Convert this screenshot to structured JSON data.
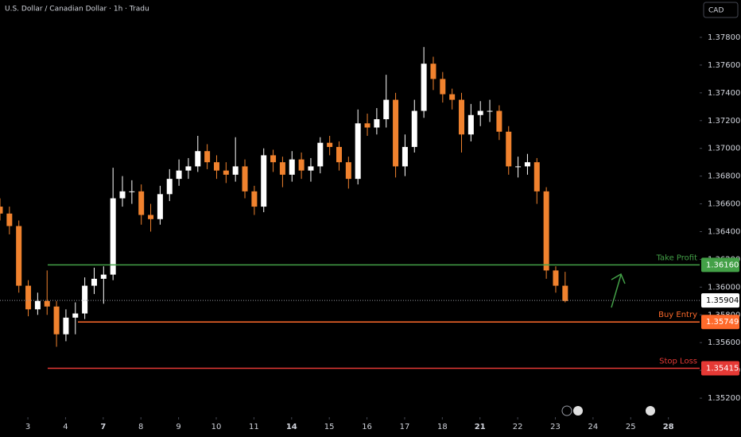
{
  "chart_data": {
    "type": "candlestick",
    "title": "U.S. Dollar / Canadian Dollar · 1h · Tradu",
    "currency": "CAD",
    "x": [
      -0.74,
      -0.49,
      -0.24,
      0.01,
      0.26,
      0.51,
      0.76,
      1.01,
      1.26,
      1.51,
      1.76,
      2.01,
      2.26,
      2.51,
      2.76,
      3.01,
      3.26,
      3.51,
      3.76,
      4.01,
      4.26,
      4.51,
      4.76,
      5.01,
      5.26,
      5.51,
      5.76,
      6.01,
      6.26,
      6.51,
      6.76,
      7.01,
      7.26,
      7.51,
      7.76,
      8.01,
      8.26,
      8.51,
      8.76,
      9.01,
      9.26,
      9.51,
      9.76,
      10.01,
      10.26,
      10.51,
      10.76,
      11.01,
      11.26,
      11.51,
      11.76,
      12.01,
      12.26,
      12.51,
      12.76,
      13.01,
      13.26,
      13.51,
      13.76,
      14.01,
      14.26
    ],
    "open": [
      1.3658,
      1.3653,
      1.3644,
      1.3601,
      1.3584,
      1.359,
      1.3586,
      1.3566,
      1.3578,
      1.3581,
      1.3601,
      1.3606,
      1.3609,
      1.3664,
      1.3669,
      1.3669,
      1.3652,
      1.3649,
      1.3667,
      1.3678,
      1.3684,
      1.3687,
      1.3698,
      1.369,
      1.3684,
      1.3681,
      1.3687,
      1.3669,
      1.3658,
      1.3695,
      1.369,
      1.3681,
      1.3692,
      1.3684,
      1.3687,
      1.3704,
      1.3701,
      1.369,
      1.3678,
      1.3718,
      1.3715,
      1.3721,
      1.3735,
      1.3687,
      1.3701,
      1.3727,
      1.3761,
      1.375,
      1.3739,
      1.3735,
      1.371,
      1.3724,
      1.3727,
      1.3727,
      1.3712,
      1.3687,
      1.3687,
      1.369,
      1.3669,
      1.3612,
      1.3601
    ],
    "high": [
      1.3664,
      1.3658,
      1.3648,
      1.3605,
      1.3596,
      1.3612,
      1.359,
      1.3584,
      1.3589,
      1.3607,
      1.3614,
      1.3615,
      1.3686,
      1.368,
      1.3677,
      1.3674,
      1.366,
      1.3673,
      1.3685,
      1.3692,
      1.3693,
      1.3709,
      1.3703,
      1.3695,
      1.369,
      1.3708,
      1.3692,
      1.3673,
      1.37,
      1.3699,
      1.3694,
      1.3698,
      1.3697,
      1.3693,
      1.3708,
      1.3709,
      1.3705,
      1.3694,
      1.3728,
      1.3725,
      1.3729,
      1.3753,
      1.374,
      1.371,
      1.3735,
      1.3773,
      1.3766,
      1.3755,
      1.3743,
      1.374,
      1.3732,
      1.3734,
      1.3735,
      1.3731,
      1.3716,
      1.3694,
      1.3696,
      1.3693,
      1.3672,
      1.3615,
      1.3611
    ],
    "low": [
      1.3648,
      1.3638,
      1.3596,
      1.3579,
      1.358,
      1.358,
      1.3557,
      1.3561,
      1.3566,
      1.3577,
      1.3595,
      1.3588,
      1.3605,
      1.3658,
      1.366,
      1.3645,
      1.364,
      1.3645,
      1.3662,
      1.3673,
      1.3678,
      1.3683,
      1.3685,
      1.3678,
      1.3675,
      1.3676,
      1.3664,
      1.3652,
      1.3654,
      1.3683,
      1.3672,
      1.3676,
      1.3678,
      1.3676,
      1.3682,
      1.3695,
      1.3684,
      1.3671,
      1.3674,
      1.3709,
      1.371,
      1.3715,
      1.3679,
      1.368,
      1.3697,
      1.3722,
      1.3742,
      1.3733,
      1.3728,
      1.3697,
      1.3705,
      1.3716,
      1.3719,
      1.3706,
      1.3681,
      1.3679,
      1.3681,
      1.366,
      1.3606,
      1.3596,
      1.3589
    ],
    "close": [
      1.3653,
      1.3644,
      1.3601,
      1.3584,
      1.359,
      1.3586,
      1.3566,
      1.3578,
      1.3581,
      1.3601,
      1.3606,
      1.3609,
      1.3664,
      1.3669,
      1.3669,
      1.3652,
      1.3649,
      1.3667,
      1.3678,
      1.3684,
      1.3687,
      1.3698,
      1.369,
      1.3684,
      1.3681,
      1.3687,
      1.3669,
      1.3658,
      1.3695,
      1.369,
      1.3681,
      1.3692,
      1.3684,
      1.3687,
      1.3704,
      1.3701,
      1.369,
      1.3678,
      1.3718,
      1.3715,
      1.3721,
      1.3735,
      1.3687,
      1.3701,
      1.3727,
      1.3761,
      1.375,
      1.3739,
      1.3735,
      1.371,
      1.3724,
      1.3727,
      1.3727,
      1.3712,
      1.3687,
      1.3687,
      1.369,
      1.3669,
      1.3612,
      1.3601,
      1.359
    ],
    "up_color": "#ffffff",
    "down_color": "#f0822e",
    "levels": [
      {
        "name": "Take Profit",
        "value": {
          "value": 1.3616,
          "label": "1.36160"
        },
        "color": "#43a047"
      },
      {
        "name": "Buy Entry",
        "value": {
          "value": 1.35749,
          "label": "1.35749"
        },
        "color": "#ff6a2b"
      },
      {
        "name": "Stop Loss",
        "value": {
          "value": 1.35415,
          "label": "1.35415"
        },
        "color": "#e53935"
      }
    ],
    "last_price": {
      "value": 1.35904,
      "label": "1.35904"
    },
    "xlim": [
      -0.74,
      17.83
    ],
    "xticks": [
      {
        "value": 0,
        "label": "3"
      },
      {
        "value": 1,
        "label": "4"
      },
      {
        "value": 2,
        "label": "7"
      },
      {
        "value": 3,
        "label": "8"
      },
      {
        "value": 4,
        "label": "9"
      },
      {
        "value": 5,
        "label": "10"
      },
      {
        "value": 6,
        "label": "11"
      },
      {
        "value": 7,
        "label": "14"
      },
      {
        "value": 8,
        "label": "15"
      },
      {
        "value": 9,
        "label": "16"
      },
      {
        "value": 10,
        "label": "17"
      },
      {
        "value": 11,
        "label": "18"
      },
      {
        "value": 12,
        "label": "21"
      },
      {
        "value": 13,
        "label": "22"
      },
      {
        "value": 14,
        "label": "23"
      },
      {
        "value": 15,
        "label": "24"
      },
      {
        "value": 16,
        "label": "25"
      },
      {
        "value": 17,
        "label": "28"
      }
    ],
    "ylim": [
      1.35063,
      1.38069
    ],
    "yticks": [
      {
        "value": 1.352,
        "label": "1.35200"
      },
      {
        "value": 1.354,
        "label": "1.35400"
      },
      {
        "value": 1.356,
        "label": "1.35600"
      },
      {
        "value": 1.358,
        "label": "1.35800"
      },
      {
        "value": 1.36,
        "label": "1.36000"
      },
      {
        "value": 1.362,
        "label": "1.36200"
      },
      {
        "value": 1.364,
        "label": "1.36400"
      },
      {
        "value": 1.366,
        "label": "1.36600"
      },
      {
        "value": 1.368,
        "label": "1.36800"
      },
      {
        "value": 1.37,
        "label": "1.37000"
      },
      {
        "value": 1.372,
        "label": "1.37200"
      },
      {
        "value": 1.374,
        "label": "1.37400"
      },
      {
        "value": 1.376,
        "label": "1.37600"
      },
      {
        "value": 1.378,
        "label": "1.37800"
      }
    ]
  }
}
